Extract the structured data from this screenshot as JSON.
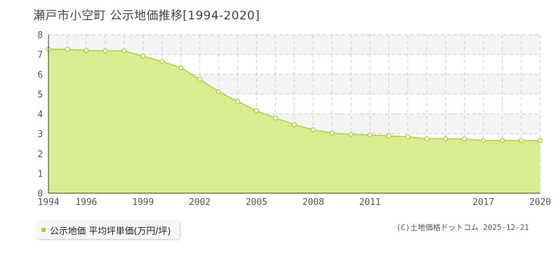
{
  "title": "瀬戸市小空町 公示地価推移[1994-2020]",
  "credit": "(C)土地価格ドットコム 2025-12-21",
  "chart_data": {
    "type": "area",
    "title": "瀬戸市小空町 公示地価推移[1994-2020]",
    "x": [
      1994,
      1995,
      1996,
      1997,
      1998,
      1999,
      2000,
      2001,
      2002,
      2003,
      2004,
      2005,
      2006,
      2007,
      2008,
      2009,
      2010,
      2011,
      2012,
      2013,
      2014,
      2015,
      2016,
      2017,
      2018,
      2019,
      2020
    ],
    "series": [
      {
        "name": "公示地価 平均坪単価(万円/坪)",
        "values": [
          7.26,
          7.26,
          7.2,
          7.18,
          7.18,
          6.92,
          6.65,
          6.33,
          5.75,
          5.12,
          4.64,
          4.16,
          3.79,
          3.46,
          3.2,
          3.03,
          2.96,
          2.94,
          2.89,
          2.85,
          2.75,
          2.75,
          2.73,
          2.66,
          2.66,
          2.66,
          2.66
        ]
      }
    ],
    "x_tick_labels": [
      "1994",
      "1996",
      "1999",
      "2002",
      "2005",
      "2008",
      "2011",
      "2017",
      "2020"
    ],
    "x_tick_years": [
      1994,
      1996,
      1999,
      2002,
      2005,
      2008,
      2011,
      2017,
      2020
    ],
    "y_tick_labels": [
      "0",
      "1",
      "2",
      "3",
      "4",
      "5",
      "6",
      "7",
      "8"
    ],
    "ylim": [
      0,
      8
    ],
    "xlim": [
      1994,
      2020
    ],
    "grid": true,
    "legend_position": "bottom-left",
    "colors": {
      "fill": "#d9ec8f",
      "line": "#a6d430",
      "grid": "#cccccc",
      "band": "#f4f4f4"
    }
  }
}
